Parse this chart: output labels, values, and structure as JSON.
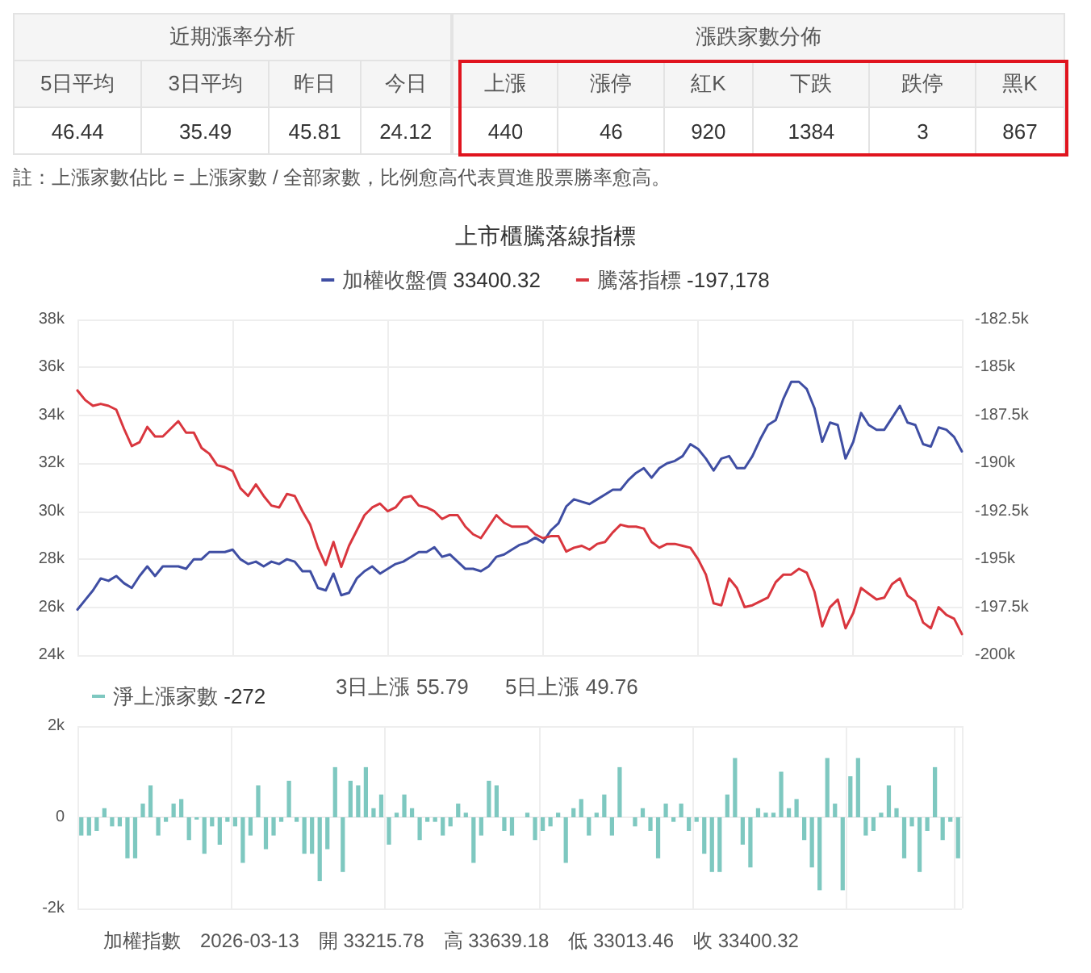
{
  "chart_data": [
    {
      "type": "other",
      "title": "近期漲率分析",
      "categories": [
        "5日平均",
        "3日平均",
        "昨日",
        "今日"
      ],
      "values": [
        46.44,
        35.49,
        45.81,
        24.12
      ],
      "data_labels": true
    },
    {
      "type": "other",
      "title": "漲跌家數分佈",
      "categories": [
        "上漲",
        "漲停",
        "紅K",
        "下跌",
        "跌停",
        "黑K"
      ],
      "values": [
        440,
        46,
        920,
        1384,
        3,
        867
      ],
      "data_labels": true,
      "annotations": [
        "註：上漲家數佔比 = 上漲家數 / 全部家數，比例愈高代表買進股票勝率愈高。"
      ]
    },
    {
      "type": "line",
      "title": "上市櫃騰落線指標",
      "categories": [
        null,
        null,
        null,
        null,
        null,
        null,
        null,
        null,
        null,
        null,
        null,
        null,
        null,
        null,
        null,
        null,
        null,
        null,
        null,
        null,
        null,
        null,
        null,
        null,
        null,
        null,
        null,
        null,
        null,
        null,
        null,
        null,
        null,
        null,
        null,
        null,
        null,
        null,
        null,
        null,
        null,
        null,
        null,
        null,
        null,
        null,
        null,
        null,
        null,
        null,
        null,
        null,
        null,
        null,
        null,
        null,
        null,
        null,
        null,
        null,
        null,
        null,
        null,
        null,
        null,
        null,
        null,
        null,
        null,
        null,
        null,
        null,
        null,
        null,
        null,
        null,
        null,
        null,
        null,
        null,
        null,
        null,
        null,
        null,
        null,
        null,
        null,
        null,
        null,
        null,
        null,
        null,
        null,
        null,
        null,
        null,
        null,
        null,
        null,
        null,
        null,
        null,
        null,
        null,
        null,
        null,
        null,
        null,
        null,
        null,
        null,
        null,
        null,
        null,
        null
      ],
      "series": [
        {
          "name": "加權收盤價",
          "color": "#3f4ea3",
          "values": [
            25900,
            26300,
            26700,
            27200,
            27100,
            27300,
            27000,
            26800,
            27300,
            27700,
            27300,
            27700,
            27700,
            27700,
            27600,
            28000,
            28000,
            28300,
            28300,
            28300,
            28400,
            28000,
            27800,
            27900,
            27700,
            27900,
            27800,
            28000,
            27900,
            27500,
            27500,
            26800,
            26700,
            27400,
            26500,
            26600,
            27200,
            27500,
            27700,
            27400,
            27600,
            27800,
            27900,
            28100,
            28300,
            28300,
            28500,
            28100,
            28200,
            27900,
            27600,
            27600,
            27500,
            27700,
            28100,
            28200,
            28400,
            28600,
            28700,
            28900,
            28700,
            29200,
            29500,
            30200,
            30500,
            30400,
            30300,
            30500,
            30700,
            30900,
            30900,
            31300,
            31600,
            31800,
            31400,
            31800,
            32000,
            32100,
            32300,
            32800,
            32600,
            32200,
            31700,
            32200,
            32300,
            31800,
            31800,
            32300,
            33000,
            33600,
            33800,
            34700,
            35400,
            35400,
            35100,
            34300,
            32900,
            33700,
            33600,
            32200,
            32900,
            34100,
            33600,
            33400,
            33400,
            33900,
            34400,
            33700,
            33600,
            32800,
            32700,
            33500,
            33400,
            33100,
            32500
          ]
        },
        {
          "name": "騰落指標",
          "color": "#d9363e",
          "axis": "y2",
          "values": [
            -186200,
            -186700,
            -187000,
            -186900,
            -187000,
            -187200,
            -188200,
            -189100,
            -188900,
            -188100,
            -188600,
            -188600,
            -188200,
            -187800,
            -188400,
            -188400,
            -189200,
            -189500,
            -190100,
            -190200,
            -190400,
            -191300,
            -191700,
            -191100,
            -191700,
            -192200,
            -192300,
            -191600,
            -191700,
            -192500,
            -193200,
            -194400,
            -195300,
            -194100,
            -195400,
            -194300,
            -193500,
            -192700,
            -192300,
            -192100,
            -192500,
            -192300,
            -191800,
            -191700,
            -192200,
            -192300,
            -192500,
            -192900,
            -192700,
            -192700,
            -193300,
            -193700,
            -193900,
            -193300,
            -192700,
            -193100,
            -193300,
            -193300,
            -193300,
            -193700,
            -193900,
            -193800,
            -193800,
            -194600,
            -194400,
            -194300,
            -194500,
            -194200,
            -194100,
            -193600,
            -193200,
            -193300,
            -193300,
            -193400,
            -194100,
            -194400,
            -194200,
            -194200,
            -194300,
            -194400,
            -195000,
            -195800,
            -197300,
            -197400,
            -196000,
            -196500,
            -197500,
            -197400,
            -197200,
            -197000,
            -196200,
            -195800,
            -195800,
            -195500,
            -195700,
            -196700,
            -198500,
            -197500,
            -197100,
            -198600,
            -197800,
            -196500,
            -196800,
            -197100,
            -197000,
            -196300,
            -196000,
            -196900,
            -197200,
            -198300,
            -198600,
            -197500,
            -197900,
            -198100,
            -198900
          ]
        }
      ],
      "ylim": [
        24000,
        38000
      ],
      "yticks": [
        {
          "value": 24000,
          "label": "24k"
        },
        {
          "value": 26000,
          "label": "26k"
        },
        {
          "value": 28000,
          "label": "28k"
        },
        {
          "value": 30000,
          "label": "30k"
        },
        {
          "value": 32000,
          "label": "32k"
        },
        {
          "value": 34000,
          "label": "34k"
        },
        {
          "value": 36000,
          "label": "36k"
        },
        {
          "value": 38000,
          "label": "38k"
        }
      ],
      "y2lim": [
        -200000,
        -182500
      ],
      "y2ticks": [
        {
          "value": -200000,
          "label": "-200k"
        },
        {
          "value": -197500,
          "label": "-197.5k"
        },
        {
          "value": -195000,
          "label": "-195k"
        },
        {
          "value": -192500,
          "label": "-192.5k"
        },
        {
          "value": -190000,
          "label": "-190k"
        },
        {
          "value": -187500,
          "label": "-187.5k"
        },
        {
          "value": -185000,
          "label": "-185k"
        },
        {
          "value": -182500,
          "label": "-182.5k"
        }
      ],
      "annotations": [
        "33400.32",
        "-197,178"
      ],
      "legend": "top",
      "grid": true,
      "tick_labels": "y",
      "line_style": "solid"
    },
    {
      "type": "bar",
      "categories": [
        null,
        null,
        null,
        null,
        null,
        null,
        null,
        null,
        null,
        null,
        null,
        null,
        null,
        null,
        null,
        null,
        null,
        null,
        null,
        null,
        null,
        null,
        null,
        null,
        null,
        null,
        null,
        null,
        null,
        null,
        null,
        null,
        null,
        null,
        null,
        null,
        null,
        null,
        null,
        null,
        null,
        null,
        null,
        null,
        null,
        null,
        null,
        null,
        null,
        null,
        null,
        null,
        null,
        null,
        null,
        null,
        null,
        null,
        null,
        null,
        null,
        null,
        null,
        null,
        null,
        null,
        null,
        null,
        null,
        null,
        null,
        null,
        null,
        null,
        null,
        null,
        null,
        null,
        null,
        null,
        null,
        null,
        null,
        null,
        null,
        null,
        null,
        null,
        null,
        null,
        null,
        null,
        null,
        null,
        null,
        null,
        null,
        null,
        null,
        null,
        null,
        null,
        null,
        null,
        null,
        null,
        null,
        null,
        null,
        null,
        null,
        null,
        null,
        null,
        null
      ],
      "series": [
        {
          "name": "淨上漲家數",
          "color": "#7ec8c0",
          "values": [
            -400,
            -400,
            -300,
            200,
            -200,
            -200,
            -900,
            -900,
            300,
            700,
            -400,
            -100,
            300,
            400,
            -500,
            -50,
            -800,
            -200,
            -600,
            -100,
            -200,
            -1000,
            -400,
            700,
            -700,
            -400,
            -100,
            800,
            -100,
            -800,
            -800,
            -1400,
            -700,
            1100,
            -1200,
            800,
            700,
            1100,
            200,
            500,
            -600,
            100,
            500,
            200,
            -500,
            -100,
            -100,
            -400,
            -200,
            300,
            100,
            -1000,
            -400,
            800,
            700,
            -300,
            -400,
            0,
            100,
            -500,
            -300,
            -200,
            100,
            -1000,
            200,
            400,
            -400,
            100,
            500,
            -400,
            1100,
            0,
            -200,
            200,
            -300,
            -900,
            300,
            -100,
            300,
            -300,
            -100,
            -800,
            -1200,
            -1200,
            500,
            1300,
            -600,
            -1100,
            200,
            100,
            100,
            1000,
            200,
            400,
            -500,
            -1100,
            -1600,
            1300,
            300,
            -1600,
            900,
            1300,
            -400,
            -300,
            100,
            700,
            200,
            -900,
            -200,
            -1200,
            -300,
            1100,
            -500,
            -100,
            -900
          ]
        }
      ],
      "ylim": [
        -2000,
        2000
      ],
      "yticks": [
        {
          "value": -2000,
          "label": "-2k"
        },
        0,
        {
          "value": 2000,
          "label": "2k"
        }
      ],
      "annotations": [
        "-272",
        "3日上漲 55.79",
        "5日上漲 49.76",
        "加權指數　2026-03-13　開 33215.78　高 33639.18　低 33013.46　收 33400.32"
      ],
      "legend": "top left",
      "grid": true,
      "tick_labels": "y"
    }
  ]
}
